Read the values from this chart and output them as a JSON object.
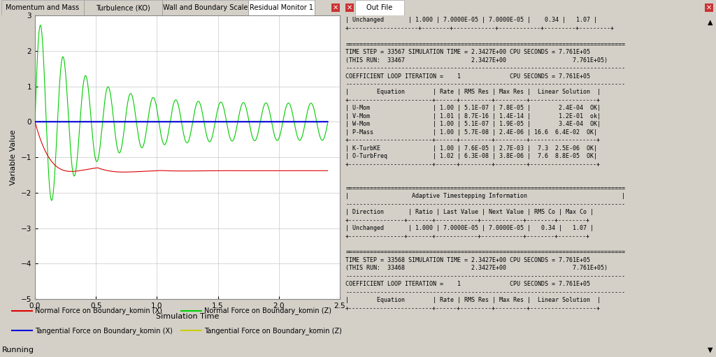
{
  "fig_width": 10.24,
  "fig_height": 5.11,
  "bg_color": "#d4d0c8",
  "left_panel": {
    "tabs": [
      "Momentum and Mass",
      "Turbulence (KO)",
      "Wall and Boundary Scale",
      "Residual Monitor 1"
    ],
    "active_tab_idx": 3,
    "plot_bg": "#ffffff",
    "grid_color": "#c8c8c8",
    "xlabel": "Simulation Time",
    "ylabel": "Variable Value",
    "xlim": [
      0,
      2.5
    ],
    "ylim": [
      -5,
      3
    ],
    "yticks": [
      -5,
      -4,
      -3,
      -2,
      -1,
      0,
      1,
      2,
      3
    ],
    "xticks": [
      0,
      0.5,
      1.0,
      1.5,
      2.0,
      2.5
    ],
    "legend": [
      {
        "label": "Normal Force on Boundary_komin (X)",
        "color": "#dd0000"
      },
      {
        "label": "Normal Force on Boundary_komin (Z)",
        "color": "#00cc00"
      },
      {
        "label": "Tangential Force on Boundary_komin (X)",
        "color": "#0000dd"
      },
      {
        "label": "Tangential Force on Boundary_komin (Z)",
        "color": "#cccc00"
      }
    ],
    "status_bar": "Running"
  },
  "right_panel": {
    "tab": "Out File",
    "text_color": "#000000",
    "bg_color": "#ffffff",
    "content": "| Unchanged       | 1.000 | 7.0000E-05 | 7.0000E-05 |    0.34 |   1.07 |\n+--------------------+--------+------------+------------+---------+---------+\n\n================================================================================\nTIME STEP = 33567 SIMULATION TIME = 2.3427E+00 CPU SECONDS = 7.761E+05\n(THIS RUN:  33467                   2.3427E+00                   7.761E+05)\n--------------------------------------------------------------------------------\nCOEFFICIENT LOOP ITERATION =    1              CPU SECONDS = 7.761E+05\n--------------------------------------------------------------------------------\n|        Equation        | Rate | RMS Res | Max Res |  Linear Solution  |\n+------------------------+------+---------+---------+-------------------+\n| U-Mom                  | 1.00 | 5.1E-07 | 7.8E-05 |        2.4E-04  OK|\n| V-Mom                  | 1.01 | 8.7E-16 | 1.4E-14 |        1.2E-01  ok|\n| W-Mom                  | 1.00 | 5.1E-07 | 1.9E-05 |        3.4E-04  OK|\n| P-Mass                 | 1.00 | 5.7E-08 | 2.4E-06 | 16.6  6.4E-02  OK|\n+------------------------+------+---------+---------+-------------------+\n| K-TurbKE               | 1.00 | 7.6E-05 | 2.7E-03 |  7.3  2.5E-06  OK|\n| O-TurbFreq             | 1.02 | 6.3E-08 | 3.8E-06 |  7.6  8.8E-05  OK|\n+------------------------+------+---------+---------+-------------------+\n\n\n================================================================================\n|                  Adaptive Timestepping Information                           |\n--------------------------------------------------------------------------------\n| Direction       | Ratio | Last Value | Next Value | RMS Co | Max Co |\n+----------------+-------+------------+------------+--------+--------+\n| Unchanged       | 1.000 | 7.0000E-05 | 7.0000E-05 |   0.34 |   1.07 |\n+----------------+-------+------------+------------+--------+--------+\n\n================================================================================\nTIME STEP = 33568 SIMULATION TIME = 2.3427E+00 CPU SECONDS = 7.761E+05\n(THIS RUN:  33468                   2.3427E+00                   7.761E+05)\n--------------------------------------------------------------------------------\nCOEFFICIENT LOOP ITERATION =    1              CPU SECONDS = 7.761E+05\n--------------------------------------------------------------------------------\n|        Equation        | Rate | RMS Res | Max Res |  Linear Solution  |\n+------------------------+------+---------+---------+-------------------+"
  }
}
